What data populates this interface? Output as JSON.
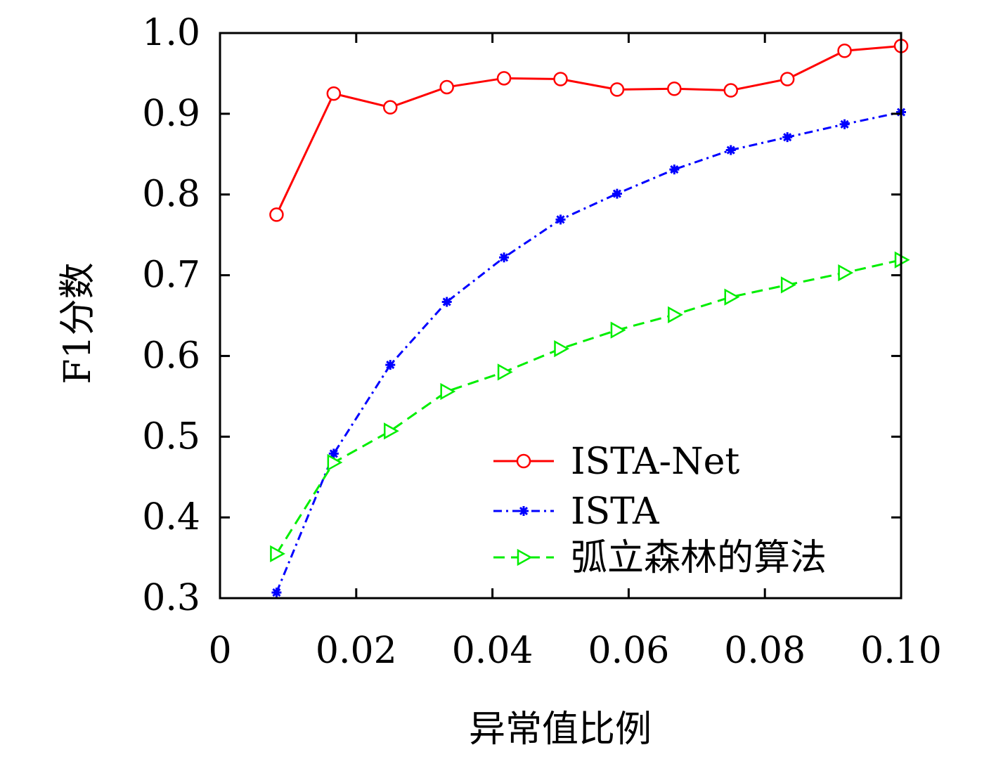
{
  "chart_data": {
    "type": "line",
    "title": "",
    "xlabel": "异常值比例",
    "ylabel": "F1分数",
    "xlim": [
      0,
      0.1
    ],
    "ylim": [
      0.3,
      1.0
    ],
    "x_ticks": [
      0,
      0.02,
      0.04,
      0.06,
      0.08,
      0.1
    ],
    "x_tick_labels": [
      "0",
      "0.02",
      "0.04",
      "0.06",
      "0.08",
      "0.10"
    ],
    "y_ticks": [
      0.3,
      0.4,
      0.5,
      0.6,
      0.7,
      0.8,
      0.9,
      1.0
    ],
    "y_tick_labels": [
      "0.3",
      "0.4",
      "0.5",
      "0.6",
      "0.7",
      "0.8",
      "0.9",
      "1.0"
    ],
    "grid": false,
    "legend_position": "bottom-right",
    "x": [
      0.0083,
      0.0167,
      0.025,
      0.0333,
      0.0417,
      0.05,
      0.0583,
      0.0667,
      0.075,
      0.0833,
      0.0917,
      0.1
    ],
    "series": [
      {
        "name": "ISTA-Net",
        "color": "#ff0000",
        "marker": "circle",
        "line_style": "solid",
        "values": [
          0.775,
          0.925,
          0.908,
          0.933,
          0.944,
          0.943,
          0.93,
          0.931,
          0.929,
          0.943,
          0.978,
          0.984
        ]
      },
      {
        "name": "ISTA",
        "color": "#0000ff",
        "marker": "star",
        "line_style": "dash-dot",
        "values": [
          0.307,
          0.479,
          0.589,
          0.667,
          0.722,
          0.769,
          0.801,
          0.831,
          0.855,
          0.871,
          0.887,
          0.902
        ]
      },
      {
        "name": "弧立森林的算法",
        "color": "#00ee00",
        "marker": "triangle-right",
        "line_style": "dashed",
        "values": [
          0.355,
          0.468,
          0.507,
          0.556,
          0.58,
          0.609,
          0.632,
          0.651,
          0.673,
          0.688,
          0.703,
          0.719
        ]
      }
    ]
  }
}
